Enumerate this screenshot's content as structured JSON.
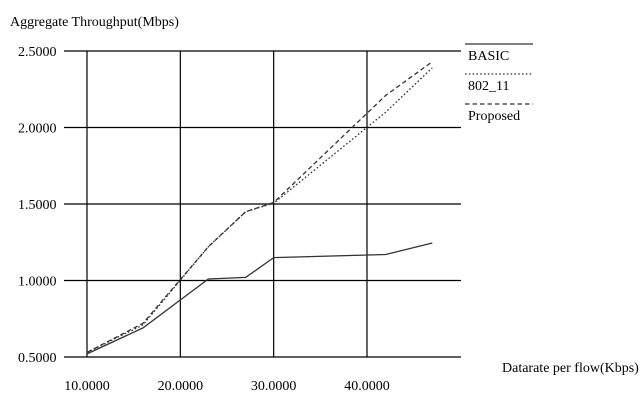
{
  "chart_data": {
    "type": "line",
    "title": "",
    "ylabel": "Aggregate Throughput(Mbps)",
    "xlabel": "Datarate per flow(Kbps)",
    "xlim": [
      10,
      47.5
    ],
    "ylim": [
      0.5,
      2.5
    ],
    "xticks": [
      10,
      20,
      30,
      40
    ],
    "xtick_labels": [
      "10.0000",
      "20.0000",
      "30.0000",
      "40.0000"
    ],
    "yticks": [
      0.5,
      1.0,
      1.5,
      2.0,
      2.5
    ],
    "ytick_labels": [
      "0.5000",
      "1.0000",
      "1.5000",
      "2.0000",
      "2.5000"
    ],
    "grid": true,
    "legend_position": "right",
    "colors": {
      "line": "#333333",
      "grid": "#000000"
    },
    "series": [
      {
        "name": "BASIC",
        "style": "solid",
        "x": [
          10,
          16,
          23,
          27,
          30,
          42,
          47
        ],
        "y": [
          0.52,
          0.69,
          1.01,
          1.02,
          1.15,
          1.17,
          1.245
        ]
      },
      {
        "name": "802_11",
        "style": "dotted",
        "x": [
          10,
          16,
          23,
          27,
          30,
          42,
          47
        ],
        "y": [
          0.53,
          0.71,
          1.22,
          1.45,
          1.505,
          2.1,
          2.39
        ]
      },
      {
        "name": "Proposed",
        "style": "dashed",
        "x": [
          10,
          16,
          23,
          27,
          30,
          42,
          47
        ],
        "y": [
          0.53,
          0.72,
          1.22,
          1.45,
          1.51,
          2.21,
          2.43
        ]
      }
    ]
  }
}
